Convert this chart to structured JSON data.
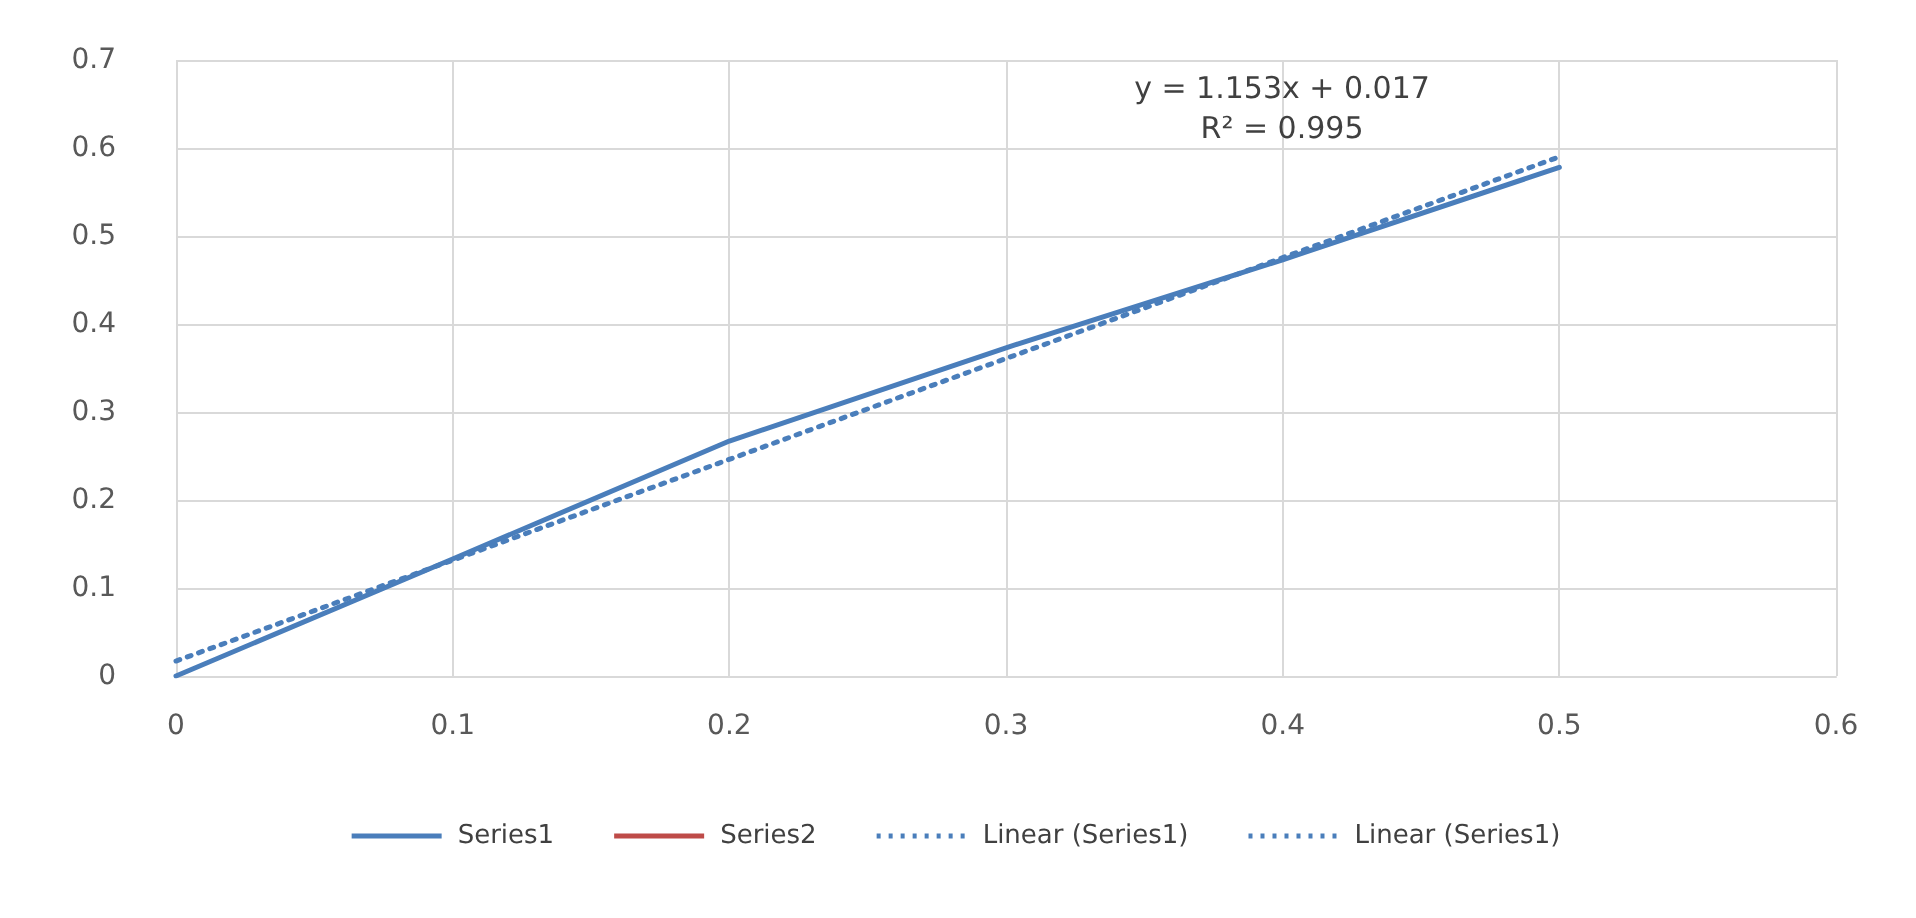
{
  "chart_data": {
    "type": "line",
    "x": [
      0,
      0.1,
      0.2,
      0.3,
      0.4,
      0.5
    ],
    "series": [
      {
        "name": "Series1",
        "color": "#4a7ebb",
        "values": [
          0,
          0.133,
          0.267,
          0.373,
          0.473,
          0.578
        ]
      },
      {
        "name": "Series2",
        "color": "#be4b48",
        "values": [
          null,
          null,
          null,
          null,
          null,
          null
        ]
      },
      {
        "name": "Linear (Series1)",
        "color": "#4a7ebb",
        "line_style": "dotted",
        "x": [
          0,
          0.5
        ],
        "values": [
          0.017,
          0.59
        ]
      },
      {
        "name": "Linear (Series1)",
        "color": "#4a7ebb",
        "line_style": "dotted",
        "values": [
          null,
          null,
          null,
          null,
          null,
          null
        ]
      }
    ],
    "annotations": [
      "y = 1.153x + 0.017",
      "R² = 0.995"
    ],
    "xlim": [
      0,
      0.6
    ],
    "xticks": [
      0,
      0.1,
      0.2,
      0.3,
      0.4,
      0.5,
      0.6
    ],
    "ylim": [
      0,
      0.7
    ],
    "yticks": [
      0,
      0.1,
      0.2,
      0.3,
      0.4,
      0.5,
      0.6,
      0.7
    ],
    "grid": true,
    "legend": "bottom",
    "marker": "none",
    "line_style": "solid"
  }
}
